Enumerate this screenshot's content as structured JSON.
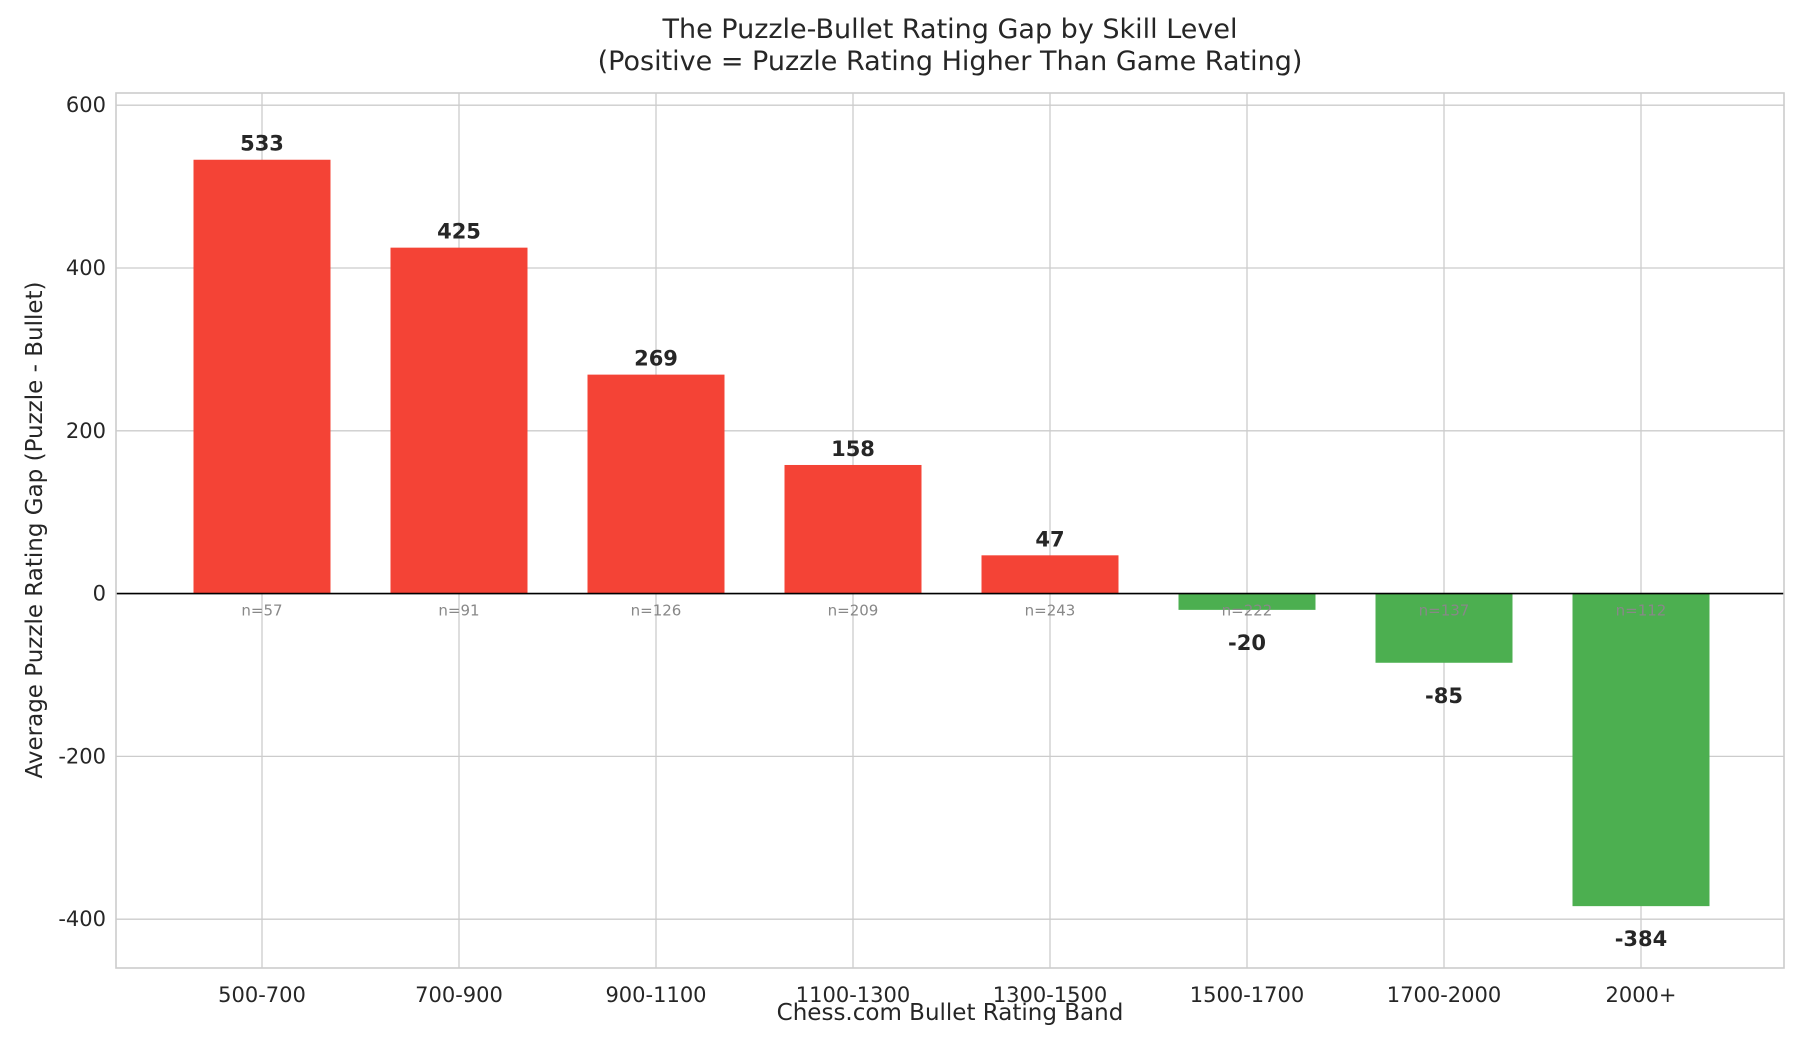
{
  "chart_data": {
    "type": "bar",
    "title": "The Puzzle-Bullet Rating Gap by Skill Level",
    "subtitle": "(Positive = Puzzle Rating Higher Than Game Rating)",
    "xlabel": "Chess.com Bullet Rating Band",
    "ylabel": "Average Puzzle Rating Gap (Puzzle - Bullet)",
    "categories": [
      "500-700",
      "700-900",
      "900-1100",
      "1100-1300",
      "1300-1500",
      "1500-1700",
      "1700-2000",
      "2000+"
    ],
    "values": [
      533,
      425,
      269,
      158,
      47,
      -20,
      -85,
      -384
    ],
    "sample_sizes": [
      "n=57",
      "n=91",
      "n=126",
      "n=209",
      "n=243",
      "n=222",
      "n=137",
      "n=112"
    ],
    "ylim": [
      -460,
      615
    ],
    "yticks": [
      600,
      400,
      200,
      0,
      -200,
      -400
    ],
    "grid": true,
    "legend": "none",
    "colors": {
      "positive": "#f44336",
      "negative": "#4caf50",
      "zero_line": "#000000"
    }
  }
}
